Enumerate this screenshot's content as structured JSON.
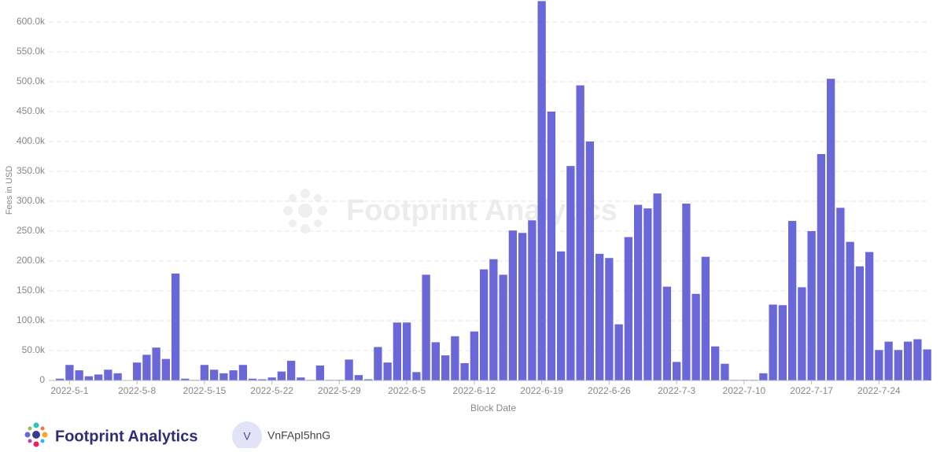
{
  "chart_data": {
    "type": "bar",
    "y_label": "Fees in USD",
    "x_label": "Block Date",
    "watermark": "Footprint Analytics",
    "categories": [
      null,
      "2022-5-1",
      null,
      null,
      null,
      null,
      null,
      null,
      "2022-5-8",
      null,
      null,
      null,
      null,
      null,
      null,
      "2022-5-15",
      null,
      null,
      null,
      null,
      null,
      null,
      "2022-5-22",
      null,
      null,
      null,
      null,
      null,
      null,
      "2022-5-29",
      null,
      null,
      null,
      null,
      null,
      null,
      "2022-6-5",
      null,
      null,
      null,
      null,
      null,
      null,
      "2022-6-12",
      null,
      null,
      null,
      null,
      null,
      null,
      "2022-6-19",
      null,
      null,
      null,
      null,
      null,
      null,
      "2022-6-26",
      null,
      null,
      null,
      null,
      null,
      null,
      "2022-7-3",
      null,
      null,
      null,
      null,
      null,
      null,
      "2022-7-10",
      null,
      null,
      null,
      null,
      null,
      null,
      "2022-7-17",
      null,
      null,
      null,
      null,
      null,
      null,
      "2022-7-24",
      null,
      null,
      null,
      null,
      null
    ],
    "values": [
      3000,
      26000,
      17000,
      7000,
      10000,
      18000,
      12000,
      0,
      30000,
      43000,
      55000,
      36000,
      179000,
      3000,
      1000,
      26000,
      18000,
      12000,
      17000,
      26000,
      3000,
      2000,
      5000,
      15000,
      33000,
      5000,
      1000,
      25000,
      1000,
      1000,
      35000,
      9000,
      2000,
      56000,
      30000,
      97000,
      97000,
      14000,
      177000,
      64000,
      42000,
      74000,
      29000,
      82000,
      186000,
      203000,
      177000,
      251000,
      247000,
      268000,
      635000,
      450000,
      216000,
      359000,
      494000,
      400000,
      212000,
      205000,
      94000,
      240000,
      294000,
      288000,
      313000,
      157000,
      31000,
      296000,
      145000,
      207000,
      57000,
      28000,
      1000,
      1000,
      1000,
      12000,
      127000,
      126000,
      267000,
      156000,
      250000,
      379000,
      505000,
      289000,
      232000,
      191000,
      215000,
      51000,
      65000,
      51000,
      65000,
      69000,
      52000
    ],
    "color": "#6a67d8",
    "ylim": [
      0,
      640000
    ],
    "yticks": [
      0,
      {
        "value": 50000,
        "label": "50.0k"
      },
      {
        "value": 100000,
        "label": "100.0k"
      },
      {
        "value": 150000,
        "label": "150.0k"
      },
      {
        "value": 200000,
        "label": "200.0k"
      },
      {
        "value": 250000,
        "label": "250.0k"
      },
      {
        "value": 300000,
        "label": "300.0k"
      },
      {
        "value": 350000,
        "label": "350.0k"
      },
      {
        "value": 400000,
        "label": "400.0k"
      },
      {
        "value": 450000,
        "label": "450.0k"
      },
      {
        "value": 500000,
        "label": "500.0k"
      },
      {
        "value": 550000,
        "label": "550.0k"
      },
      {
        "value": 600000,
        "label": "600.0k"
      }
    ],
    "grid": true
  },
  "footer": {
    "brand": "Footprint Analytics",
    "avatar": "V",
    "user": "VnFApI5hnG"
  }
}
